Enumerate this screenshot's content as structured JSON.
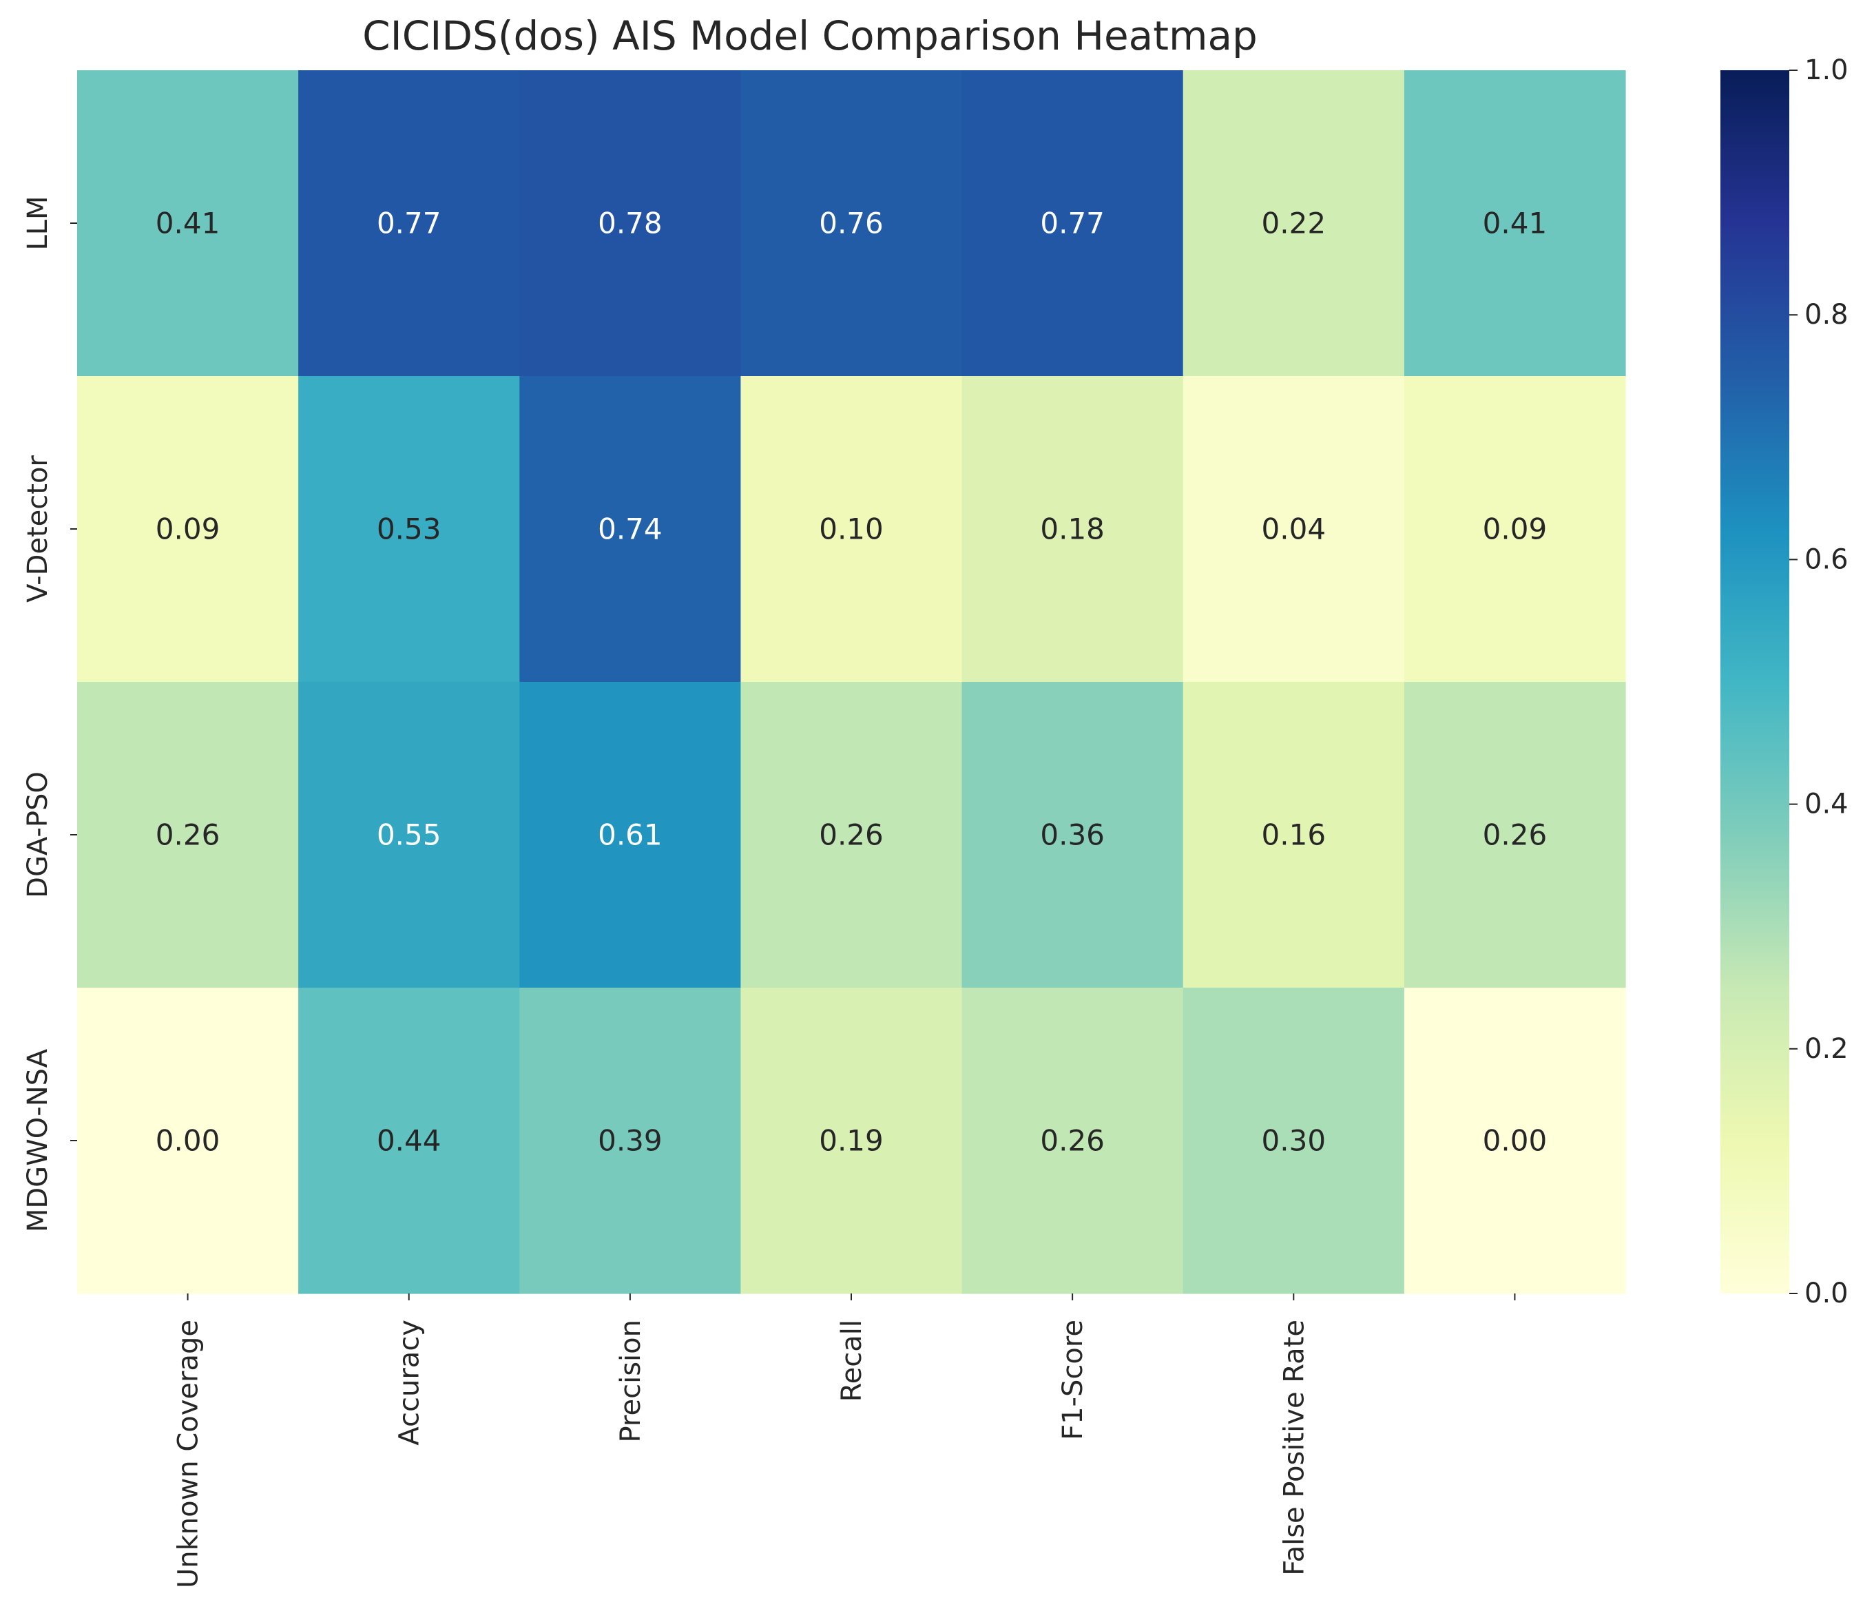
{
  "chart_data": {
    "type": "heatmap",
    "title": "CICIDS(dos) AIS Model Comparison Heatmap",
    "xlabel": "",
    "ylabel": "",
    "rows": [
      "LLM",
      "V-Detector",
      "DGA-PSO",
      "MDGWO-NSA"
    ],
    "columns": [
      "Unknown Coverage",
      "Accuracy",
      "Precision",
      "Recall",
      "F1-Score",
      "False Positive Rate",
      ""
    ],
    "values": [
      [
        0.41,
        0.77,
        0.78,
        0.76,
        0.77,
        0.22,
        0.41
      ],
      [
        0.09,
        0.53,
        0.74,
        0.1,
        0.18,
        0.04,
        0.09
      ],
      [
        0.26,
        0.55,
        0.61,
        0.26,
        0.36,
        0.16,
        0.26
      ],
      [
        0.0,
        0.44,
        0.39,
        0.19,
        0.26,
        0.3,
        0.0
      ]
    ],
    "value_format": "0.00",
    "colorbar": {
      "colormap": "YlGnBu",
      "range": [
        0.0,
        1.0
      ],
      "ticks": [
        0.0,
        0.2,
        0.4,
        0.6,
        0.8,
        1.0
      ],
      "tick_labels": [
        "0.0",
        "0.2",
        "0.4",
        "0.6",
        "0.8",
        "1.0"
      ]
    },
    "grid": false,
    "legend": "colorbar-right"
  }
}
